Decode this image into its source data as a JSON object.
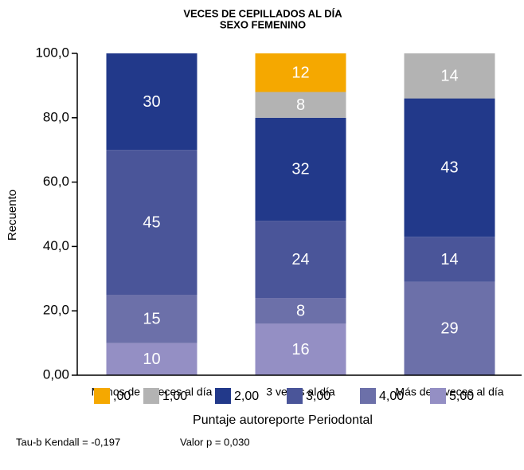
{
  "chart_data": {
    "type": "stacked_bar",
    "title": "VECES DE CEPILLADOS AL DÍA",
    "subtitle": "SEXO FEMENINO",
    "y_label": "Recuento",
    "categories": [
      "Menos de 3 veces al día",
      "3 veces al día",
      "Más de 3 veces al día"
    ],
    "series": [
      {
        "name": ",00",
        "color": "#f5a800",
        "values": [
          null,
          12,
          null
        ]
      },
      {
        "name": "1,00",
        "color": "#b3b3b3",
        "values": [
          null,
          8,
          14
        ]
      },
      {
        "name": "2,00",
        "color": "#22398a",
        "values": [
          30,
          32,
          43
        ]
      },
      {
        "name": "3,00",
        "color": "#4a5599",
        "values": [
          45,
          24,
          14
        ]
      },
      {
        "name": "4,00",
        "color": "#6c70a9",
        "values": [
          15,
          8,
          29
        ]
      },
      {
        "name": "5,00",
        "color": "#948fc4",
        "values": [
          10,
          16,
          null
        ]
      }
    ],
    "ylim": [
      0,
      100
    ],
    "yticks": [
      {
        "value": 0,
        "label": "0,00"
      },
      {
        "value": 20,
        "label": "20,0"
      },
      {
        "value": 40,
        "label": "40,0"
      },
      {
        "value": 60,
        "label": "60,0"
      },
      {
        "value": 80,
        "label": "80,0"
      },
      {
        "value": 100,
        "label": "100,0"
      }
    ],
    "legend_title": "Puntaje autoreporte Periodontal",
    "annotations": [
      "Tau-b Kendall = -0,197",
      "Valor p = 0,030"
    ]
  }
}
